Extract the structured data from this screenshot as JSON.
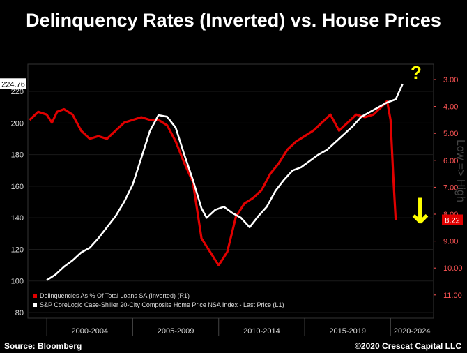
{
  "title": "Delinquency Rates (Inverted) vs. House Prices",
  "footer": {
    "source": "Source: Bloomberg",
    "copyright": "©2020 Crescat Capital LLC"
  },
  "colors": {
    "background": "#000000",
    "house_price_line": "#ffffff",
    "delinquency_line": "#e00000",
    "annotation": "#ffff00",
    "grid": "#1a1a1a"
  },
  "chart_data": {
    "type": "line",
    "title": "Delinquency Rates (Inverted) vs. House Prices",
    "x_categories": [
      "2000-2004",
      "2005-2009",
      "2010-2014",
      "2015-2019",
      "2020-2024"
    ],
    "left_axis": {
      "ticks": [
        "80",
        "100",
        "120",
        "140",
        "160",
        "180",
        "200",
        "220"
      ],
      "range": [
        80,
        224
      ],
      "last_value_label": "224.76"
    },
    "right_axis": {
      "inverted": true,
      "ticks": [
        "3.00",
        "4.00",
        "5.00",
        "6.00",
        "7.00",
        "8.00",
        "9.00",
        "10.00",
        "11.00"
      ],
      "range": [
        2.7,
        11.5
      ],
      "last_value_label": "8.22",
      "side_label": "Low => High"
    },
    "annotations": {
      "question_mark": "?",
      "down_arrow": "↓"
    },
    "legend": {
      "placement": "bottom-left",
      "entries": [
        "Delinquencies As % Of Total Loans SA (Inverted) (R1)",
        "S&P CoreLogic Case-Shiller 20-City Composite Home Price NSA Index - Last Price (L1)"
      ]
    },
    "series": [
      {
        "name": "S&P CoreLogic Case-Shiller 20-City Composite Home Price NSA Index - Last Price (L1)",
        "axis": "left",
        "points": [
          [
            2000.0,
            100.5
          ],
          [
            2000.5,
            104
          ],
          [
            2001.0,
            109
          ],
          [
            2001.5,
            113
          ],
          [
            2002.0,
            118
          ],
          [
            2002.5,
            121
          ],
          [
            2003.0,
            127
          ],
          [
            2003.5,
            134
          ],
          [
            2004.0,
            141
          ],
          [
            2004.5,
            150
          ],
          [
            2005.0,
            161
          ],
          [
            2005.5,
            178
          ],
          [
            2006.0,
            195
          ],
          [
            2006.5,
            205
          ],
          [
            2007.0,
            204
          ],
          [
            2007.5,
            197
          ],
          [
            2008.0,
            180
          ],
          [
            2008.5,
            164
          ],
          [
            2009.0,
            146
          ],
          [
            2009.3,
            140
          ],
          [
            2009.8,
            145
          ],
          [
            2010.3,
            147
          ],
          [
            2010.8,
            143
          ],
          [
            2011.3,
            140
          ],
          [
            2011.8,
            134
          ],
          [
            2012.3,
            141
          ],
          [
            2012.8,
            147
          ],
          [
            2013.3,
            157
          ],
          [
            2013.8,
            164
          ],
          [
            2014.3,
            170
          ],
          [
            2014.8,
            172
          ],
          [
            2015.3,
            176
          ],
          [
            2015.8,
            180
          ],
          [
            2016.3,
            183
          ],
          [
            2016.8,
            188
          ],
          [
            2017.3,
            193
          ],
          [
            2017.8,
            198
          ],
          [
            2018.3,
            204
          ],
          [
            2018.8,
            207
          ],
          [
            2019.3,
            210
          ],
          [
            2019.8,
            213
          ],
          [
            2020.3,
            215
          ],
          [
            2020.7,
            224.76
          ]
        ]
      },
      {
        "name": "Delinquencies As % Of Total Loans SA (Inverted) (R1)",
        "axis": "right",
        "inverted": true,
        "points": [
          [
            1999.0,
            4.5
          ],
          [
            1999.5,
            4.2
          ],
          [
            2000.0,
            4.3
          ],
          [
            2000.3,
            4.6
          ],
          [
            2000.6,
            4.2
          ],
          [
            2001.0,
            4.1
          ],
          [
            2001.5,
            4.3
          ],
          [
            2002.0,
            4.9
          ],
          [
            2002.5,
            5.2
          ],
          [
            2003.0,
            5.1
          ],
          [
            2003.5,
            5.2
          ],
          [
            2004.0,
            4.9
          ],
          [
            2004.5,
            4.6
          ],
          [
            2005.0,
            4.5
          ],
          [
            2005.5,
            4.4
          ],
          [
            2006.0,
            4.5
          ],
          [
            2006.5,
            4.5
          ],
          [
            2007.0,
            4.7
          ],
          [
            2007.5,
            5.3
          ],
          [
            2008.0,
            6.1
          ],
          [
            2008.5,
            6.8
          ],
          [
            2009.0,
            8.9
          ],
          [
            2009.5,
            9.4
          ],
          [
            2010.0,
            9.9
          ],
          [
            2010.5,
            9.4
          ],
          [
            2011.0,
            8.1
          ],
          [
            2011.5,
            7.6
          ],
          [
            2012.0,
            7.4
          ],
          [
            2012.5,
            7.1
          ],
          [
            2013.0,
            6.5
          ],
          [
            2013.5,
            6.1
          ],
          [
            2014.0,
            5.6
          ],
          [
            2014.5,
            5.3
          ],
          [
            2015.0,
            5.1
          ],
          [
            2015.5,
            4.9
          ],
          [
            2016.0,
            4.6
          ],
          [
            2016.5,
            4.3
          ],
          [
            2017.0,
            4.9
          ],
          [
            2017.5,
            4.6
          ],
          [
            2018.0,
            4.3
          ],
          [
            2018.5,
            4.4
          ],
          [
            2019.0,
            4.3
          ],
          [
            2019.5,
            4.0
          ],
          [
            2019.8,
            3.8
          ],
          [
            2020.0,
            4.5
          ],
          [
            2020.15,
            6.5
          ],
          [
            2020.3,
            8.22
          ]
        ]
      }
    ]
  }
}
